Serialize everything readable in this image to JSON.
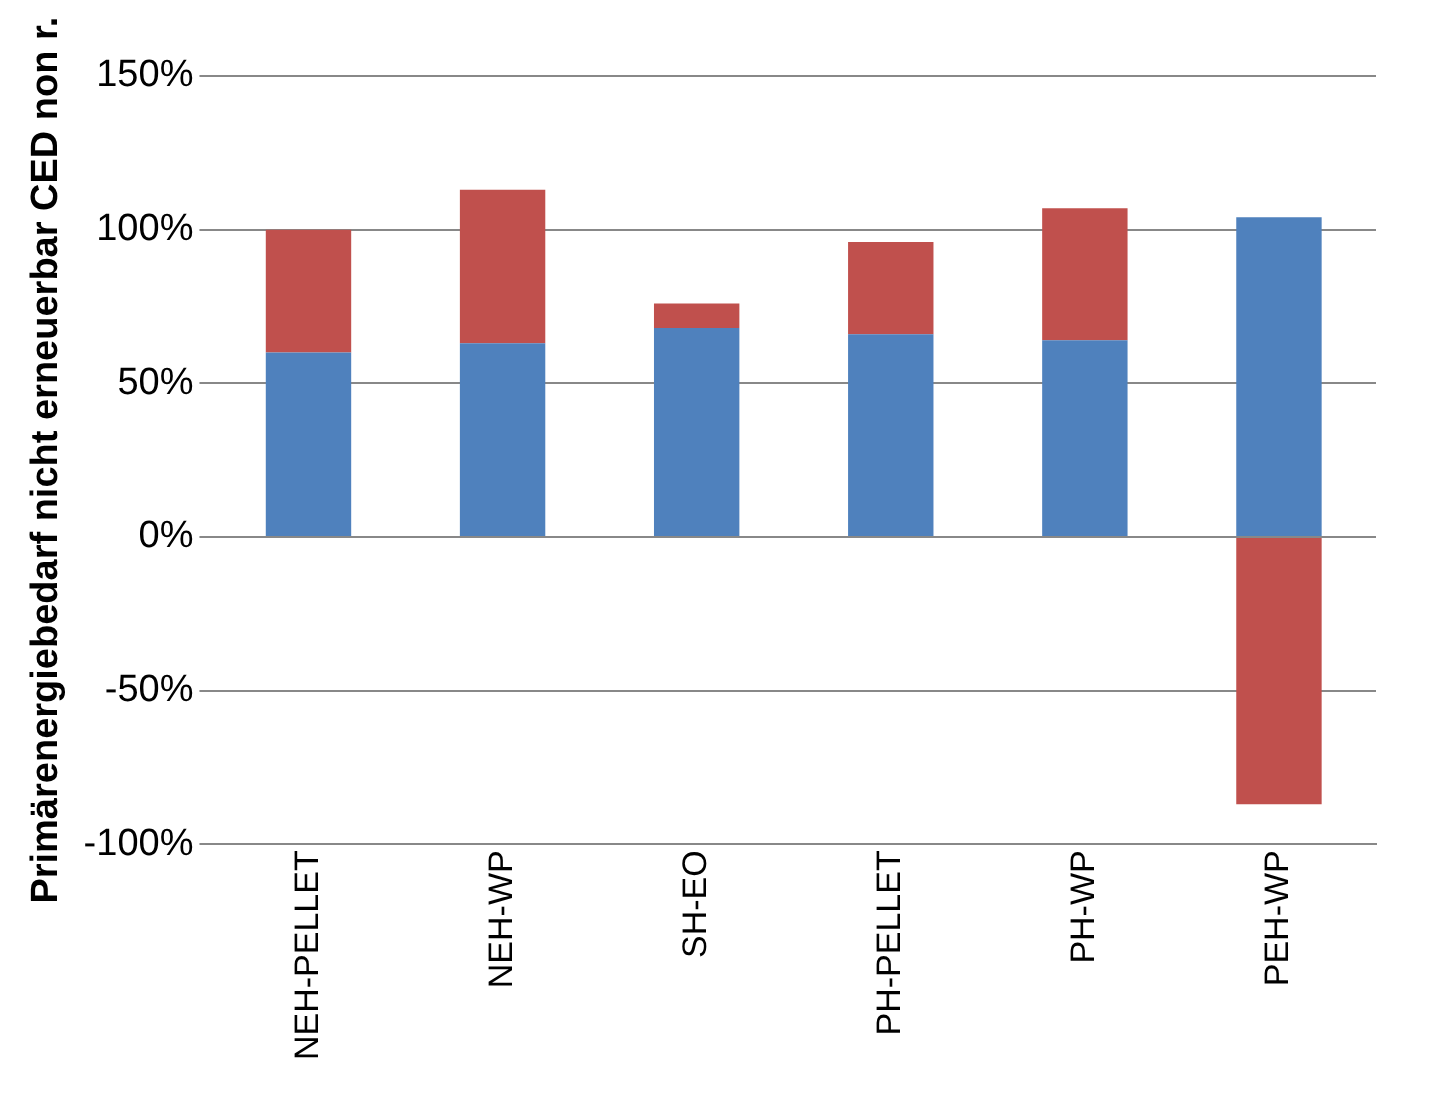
{
  "chart_data": {
    "type": "bar",
    "stacked": true,
    "ylabel": "Primärenergiebedarf nicht erneuerbar CED non r.",
    "categories": [
      "NEH-PELLET",
      "NEH-WP",
      "SH-EO",
      "PH-PELLET",
      "PH-WP",
      "PEH-WP"
    ],
    "series": [
      {
        "color": "#4f81bd",
        "values": [
          60,
          63,
          68,
          66,
          64,
          104
        ]
      },
      {
        "color": "#c0504d",
        "values": [
          40,
          50,
          8,
          30,
          43,
          -87
        ]
      }
    ],
    "ylim": [
      -100,
      150
    ],
    "yticks": [
      {
        "value": -100,
        "label": "-100%"
      },
      {
        "value": -50,
        "label": "-50%"
      },
      {
        "value": 0,
        "label": "0%"
      },
      {
        "value": 50,
        "label": "50%"
      },
      {
        "value": 100,
        "label": "100%"
      },
      {
        "value": 150,
        "label": "150%"
      }
    ],
    "grid": "y",
    "legend": false
  }
}
